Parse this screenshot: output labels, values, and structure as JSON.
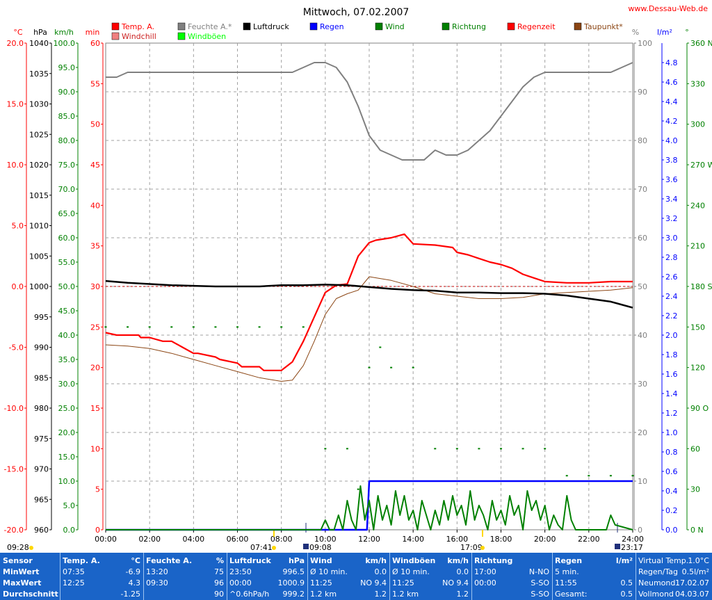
{
  "header": {
    "title": "Mittwoch, 07.02.2007",
    "site": "www.Dessau-Web.de"
  },
  "legend": [
    {
      "label": "Temp. A.",
      "color": "#ff0000"
    },
    {
      "label": "Feuchte A.*",
      "color": "#808080"
    },
    {
      "label": "Luftdruck",
      "color": "#000000"
    },
    {
      "label": "Regen",
      "color": "#0000ff"
    },
    {
      "label": "Wind",
      "color": "#008000"
    },
    {
      "label": "Richtung",
      "color": "#008000"
    },
    {
      "label": "Regenzeit",
      "color": "#ff0000"
    },
    {
      "label": "Taupunkt*",
      "color": "#8b4513"
    },
    {
      "label": "Windchill",
      "color": "#f08080"
    },
    {
      "label": "Windböen",
      "color": "#00ff00"
    }
  ],
  "axes": {
    "temp": {
      "unit": "°C",
      "color": "#ff0000",
      "ticks": [
        "20.0",
        "15.0",
        "10.0",
        "5.0",
        "0.0",
        "-5.0",
        "-10.0",
        "-15.0",
        "-20.0"
      ]
    },
    "pressure": {
      "unit": "hPa",
      "color": "#000000",
      "ticks": [
        "1040",
        "1035",
        "1030",
        "1025",
        "1020",
        "1015",
        "1010",
        "1005",
        "1000",
        "995",
        "990",
        "985",
        "980",
        "975",
        "970",
        "965",
        "960"
      ]
    },
    "wind": {
      "unit": "km/h",
      "color": "#008000",
      "ticks": [
        "100.0",
        "95.0",
        "90.0",
        "85.0",
        "80.0",
        "75.0",
        "70.0",
        "65.0",
        "60.0",
        "55.0",
        "50.0",
        "45.0",
        "40.0",
        "35.0",
        "30.0",
        "25.0",
        "20.0",
        "15.0",
        "10.0",
        "5.0",
        "0.0"
      ]
    },
    "minutes": {
      "unit": "min",
      "color": "#ff0000",
      "ticks": [
        "60",
        "55",
        "50",
        "45",
        "40",
        "35",
        "30",
        "25",
        "20",
        "15",
        "10",
        "5",
        "0"
      ]
    },
    "humidity": {
      "unit": "%",
      "color": "#808080",
      "ticks": [
        "100",
        "90",
        "80",
        "70",
        "60",
        "50",
        "40",
        "30",
        "20",
        "10",
        "0"
      ]
    },
    "rain": {
      "unit": "l/m²",
      "color": "#0000ff",
      "ticks": [
        "4.8",
        "4.6",
        "4.4",
        "4.2",
        "4.0",
        "3.8",
        "3.6",
        "3.4",
        "3.2",
        "3.0",
        "2.8",
        "2.6",
        "2.4",
        "2.2",
        "2.0",
        "1.8",
        "1.6",
        "1.4",
        "1.2",
        "1.0",
        "0.8",
        "0.6",
        "0.4",
        "0.2",
        "0.0"
      ]
    },
    "direction": {
      "unit": "°",
      "color": "#008000",
      "ticks": [
        "360 N",
        "330",
        "300",
        "270 W",
        "240",
        "210",
        "180 S",
        "150",
        "120",
        "90 O",
        "60",
        "30",
        "0 N"
      ]
    },
    "time": {
      "ticks": [
        "00:00",
        "02:00",
        "04:00",
        "06:00",
        "08:00",
        "10:00",
        "12:00",
        "14:00",
        "16:00",
        "18:00",
        "20:00",
        "22:00",
        "24:00"
      ]
    }
  },
  "sun_moon": {
    "moonset": "09:28",
    "sunrise": "07:41",
    "moonrise": "09:08",
    "sunset": "17:09",
    "moon2": "23:17"
  },
  "chart_data": {
    "type": "line",
    "title": "Mittwoch, 07.02.2007",
    "x_unit": "hours",
    "xlim": [
      0,
      24
    ],
    "series": [
      {
        "name": "Temp. A.",
        "unit": "°C",
        "color": "#ff0000",
        "x": [
          0,
          0.5,
          1.5,
          1.6,
          2,
          2.6,
          3,
          3.5,
          4,
          4.2,
          5,
          5.2,
          6,
          6.2,
          7,
          7.2,
          8,
          8.5,
          9,
          9.5,
          10,
          10.5,
          11,
          11.5,
          12,
          12.3,
          13,
          13.6,
          14,
          15,
          15.8,
          16,
          16.5,
          17,
          17.5,
          18,
          18.5,
          19,
          19.5,
          20,
          21,
          22,
          23,
          24
        ],
        "y": [
          -3.8,
          -4.0,
          -4.0,
          -4.2,
          -4.2,
          -4.5,
          -4.5,
          -5.0,
          -5.5,
          -5.5,
          -5.8,
          -6.0,
          -6.3,
          -6.6,
          -6.6,
          -6.9,
          -6.9,
          -6.2,
          -4.5,
          -2.5,
          -0.5,
          0.1,
          0.2,
          2.5,
          3.6,
          3.8,
          4.0,
          4.3,
          3.5,
          3.4,
          3.2,
          2.8,
          2.6,
          2.3,
          2.0,
          1.8,
          1.5,
          1.0,
          0.7,
          0.4,
          0.3,
          0.3,
          0.4,
          0.4
        ]
      },
      {
        "name": "Taupunkt*",
        "unit": "°C",
        "color": "#8b4513",
        "x": [
          0,
          1,
          2,
          3,
          4,
          5,
          6,
          7,
          8,
          8.5,
          9,
          9.5,
          10,
          10.5,
          11,
          11.5,
          12,
          13,
          14,
          15,
          16,
          17,
          18,
          19,
          20,
          21,
          22,
          23,
          24
        ],
        "y": [
          -4.8,
          -4.9,
          -5.1,
          -5.5,
          -6.0,
          -6.5,
          -7.0,
          -7.5,
          -7.8,
          -7.7,
          -6.5,
          -4.5,
          -2.3,
          -1.0,
          -0.6,
          -0.3,
          0.8,
          0.5,
          0.0,
          -0.6,
          -0.8,
          -1.0,
          -1.0,
          -0.9,
          -0.6,
          -0.5,
          -0.4,
          -0.3,
          -0.1
        ]
      },
      {
        "name": "Feuchte A.*",
        "unit": "%",
        "color": "#808080",
        "x": [
          0,
          0.5,
          1,
          1.5,
          2,
          3,
          4,
          5,
          6,
          7,
          8,
          8.5,
          9,
          9.5,
          10,
          10.5,
          11,
          11.5,
          12,
          12.5,
          13,
          13.5,
          14,
          14.5,
          15,
          15.5,
          16,
          16.5,
          17,
          17.5,
          18,
          18.5,
          19,
          19.5,
          20,
          21,
          22,
          23,
          24
        ],
        "y": [
          93,
          93,
          94,
          94,
          94,
          94,
          94,
          94,
          94,
          94,
          94,
          94,
          95,
          96,
          96,
          95,
          92,
          87,
          81,
          78,
          77,
          76,
          76,
          76,
          78,
          77,
          77,
          78,
          80,
          82,
          85,
          88,
          91,
          93,
          94,
          94,
          94,
          94,
          96
        ]
      },
      {
        "name": "Luftdruck",
        "unit": "hPa",
        "color": "#000000",
        "x": [
          0,
          1,
          2,
          3,
          4,
          5,
          6,
          7,
          8,
          9,
          10,
          11,
          12,
          13,
          14,
          15,
          16,
          17,
          18,
          19,
          20,
          21,
          22,
          23,
          24
        ],
        "y": [
          1000.9,
          1000.6,
          1000.4,
          1000.2,
          1000.1,
          1000.0,
          1000.0,
          1000.0,
          1000.2,
          1000.2,
          1000.3,
          1000.2,
          999.9,
          999.6,
          999.4,
          999.3,
          999.0,
          999.0,
          998.9,
          998.9,
          998.8,
          998.5,
          998.0,
          997.5,
          996.5
        ]
      },
      {
        "name": "Regen",
        "unit": "l/m²",
        "color": "#0000ff",
        "x": [
          0,
          11.9,
          12.0,
          24
        ],
        "y": [
          0,
          0,
          0.5,
          0.5
        ]
      },
      {
        "name": "Wind",
        "unit": "km/h",
        "color": "#008000",
        "x": [
          0,
          9.8,
          10.0,
          10.2,
          10.4,
          10.6,
          10.8,
          11.0,
          11.2,
          11.4,
          11.6,
          11.8,
          12.0,
          12.2,
          12.4,
          12.6,
          12.8,
          13.0,
          13.2,
          13.4,
          13.6,
          13.8,
          14.0,
          14.2,
          14.4,
          14.6,
          14.8,
          15.0,
          15.2,
          15.4,
          15.6,
          15.8,
          16.0,
          16.2,
          16.4,
          16.6,
          16.8,
          17.0,
          17.2,
          17.4,
          17.6,
          17.8,
          18.0,
          18.2,
          18.4,
          18.6,
          18.8,
          19.0,
          19.2,
          19.4,
          19.6,
          19.8,
          20.0,
          20.2,
          20.4,
          20.6,
          20.8,
          21.0,
          21.2,
          21.4,
          22.0,
          22.8,
          23.0,
          23.2,
          24
        ],
        "y": [
          0,
          0,
          2,
          0,
          0,
          3,
          0,
          6,
          2,
          0,
          9,
          2,
          6,
          0,
          7,
          2,
          5,
          1,
          8,
          3,
          7,
          2,
          4,
          0,
          6,
          3,
          0,
          4,
          1,
          6,
          2,
          7,
          3,
          5,
          1,
          8,
          2,
          5,
          3,
          0,
          6,
          2,
          4,
          1,
          7,
          3,
          5,
          0,
          8,
          4,
          6,
          2,
          5,
          0,
          3,
          1,
          0,
          7,
          2,
          0,
          0,
          0,
          3,
          1,
          0
        ]
      },
      {
        "name": "Richtung",
        "unit": "°",
        "color": "#008000",
        "note": "dots",
        "x": [
          0,
          1,
          2,
          3,
          4,
          5,
          6,
          7,
          8,
          9,
          10,
          11,
          11.5,
          12,
          12.5,
          13,
          14,
          15,
          16,
          17,
          18,
          19,
          20,
          21,
          22,
          23,
          24
        ],
        "y": [
          150,
          150,
          150,
          150,
          150,
          150,
          150,
          150,
          150,
          150,
          60,
          60,
          30,
          120,
          135,
          120,
          120,
          60,
          60,
          60,
          60,
          60,
          60,
          40,
          40,
          40,
          40
        ]
      }
    ],
    "ylim_temp": [
      -20,
      20
    ],
    "ylim_pressure": [
      960,
      1040
    ],
    "ylim_wind": [
      0,
      100
    ],
    "ylim_humidity": [
      0,
      100
    ],
    "ylim_rain": [
      0,
      5
    ],
    "ylim_direction": [
      0,
      360
    ],
    "grid": true
  },
  "footer": {
    "columns": [
      {
        "header": "Sensor",
        "rows": [
          "MinWert",
          "MaxWert",
          "Durchschnitt"
        ]
      },
      {
        "header": "Temp. A.",
        "unit": "°C",
        "rows": [
          [
            "07:35",
            "-6.9"
          ],
          [
            "12:25",
            "4.3"
          ],
          [
            "",
            "-1.25"
          ]
        ]
      },
      {
        "header": "Feuchte A.",
        "unit": "%",
        "rows": [
          [
            "13:20",
            "75"
          ],
          [
            "09:30",
            "96"
          ],
          [
            "",
            "90"
          ]
        ]
      },
      {
        "header": "Luftdruck",
        "unit": "hPa",
        "rows": [
          [
            "23:50",
            "996.5"
          ],
          [
            "00:00",
            "1000.9"
          ],
          [
            "^0.6hPa/h",
            "999.2"
          ]
        ]
      },
      {
        "header": "Wind",
        "unit": "km/h",
        "rows": [
          [
            "Ø 10 min.",
            "0.0"
          ],
          [
            "11:25",
            "NO 9.4"
          ],
          [
            "1.2 km",
            "1.2"
          ]
        ]
      },
      {
        "header": "Windböen",
        "unit": "km/h",
        "rows": [
          [
            "Ø 10 min.",
            "0.0"
          ],
          [
            "11:25",
            "NO 9.4"
          ],
          [
            "1.2 km",
            "1.2"
          ]
        ]
      },
      {
        "header": "Richtung",
        "unit": "",
        "rows": [
          [
            "17:00",
            "N-NO"
          ],
          [
            "00:00",
            "S-SO"
          ],
          [
            "",
            "S-SO"
          ]
        ]
      },
      {
        "header": "Regen",
        "unit": "l/m²",
        "rows": [
          [
            "5 min.",
            ""
          ],
          [
            "11:55",
            "0.5"
          ],
          [
            "Gesamt:",
            "0.5"
          ]
        ]
      },
      {
        "header": "",
        "unit": "",
        "rows": [
          [
            "Virtual Temp.",
            "1.0°C"
          ],
          [
            "Regen/Tag",
            "0.5l/m²"
          ],
          [
            "Neumond",
            "17.02.07"
          ],
          [
            "Vollmond",
            "04.03.07"
          ]
        ]
      }
    ]
  }
}
